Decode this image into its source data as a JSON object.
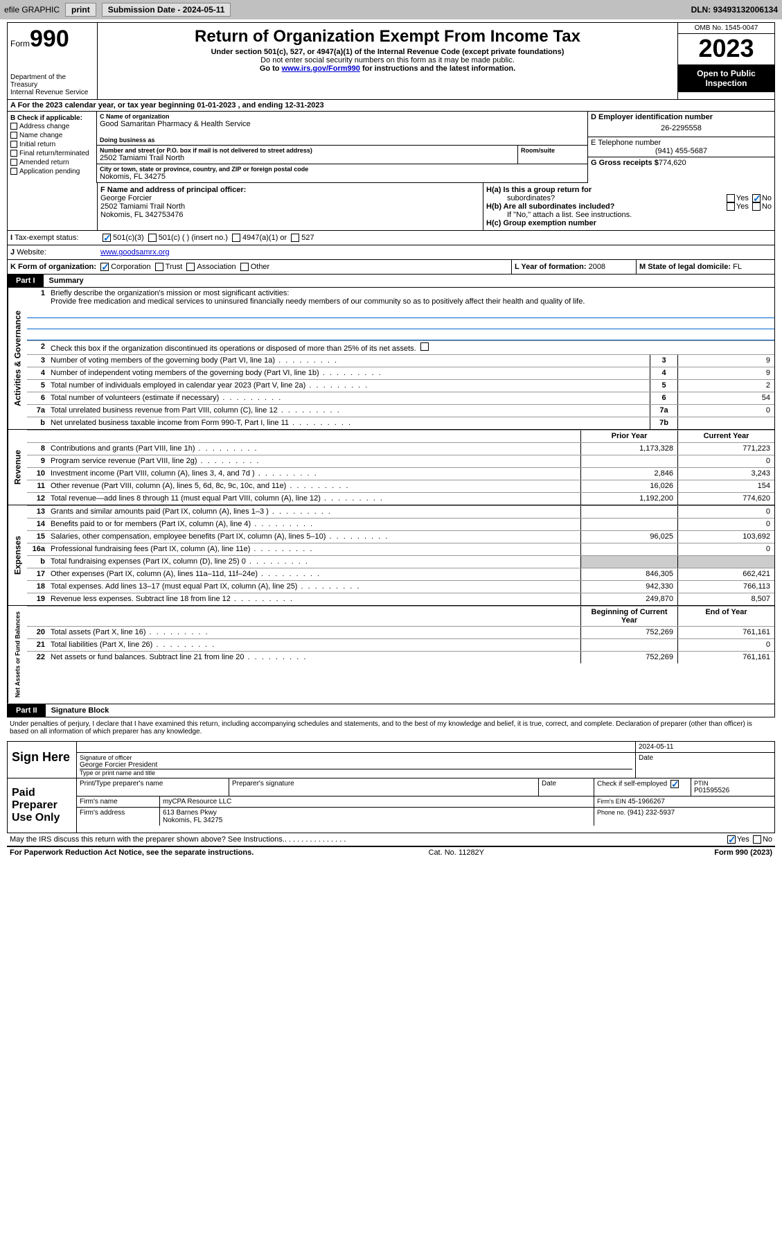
{
  "topbar": {
    "efile": "efile GRAPHIC",
    "print": "print",
    "submission": "Submission Date - 2024-05-11",
    "dln": "DLN: 93493132006134"
  },
  "header": {
    "form_label": "Form",
    "form_num": "990",
    "dept": "Department of the Treasury\nInternal Revenue Service",
    "title": "Return of Organization Exempt From Income Tax",
    "sub1": "Under section 501(c), 527, or 4947(a)(1) of the Internal Revenue Code (except private foundations)",
    "sub2": "Do not enter social security numbers on this form as it may be made public.",
    "sub3_pre": "Go to ",
    "sub3_link": "www.irs.gov/Form990",
    "sub3_post": " for instructions and the latest information.",
    "omb": "OMB No. 1545-0047",
    "year": "2023",
    "inspect": "Open to Public\nInspection"
  },
  "line_a": "A For the 2023 calendar year, or tax year beginning 01-01-2023   , and ending 12-31-2023",
  "section_b": {
    "label": "B Check if applicable:",
    "items": [
      "Address change",
      "Name change",
      "Initial return",
      "Final return/terminated",
      "Amended return",
      "Application pending"
    ]
  },
  "section_c": {
    "c_label": "C Name of organization",
    "org": "Good Samaritan Pharmacy & Health Service",
    "dba_label": "Doing business as",
    "dba": "",
    "addr_label": "Number and street (or P.O. box if mail is not delivered to street address)",
    "room_label": "Room/suite",
    "addr": "2502 Tamiami Trail North",
    "city_label": "City or town, state or province, country, and ZIP or foreign postal code",
    "city": "Nokomis, FL  34275"
  },
  "section_d": {
    "label": "D Employer identification number",
    "ein": "26-2295558"
  },
  "section_e": {
    "label": "E Telephone number",
    "phone": "(941) 455-5687"
  },
  "section_g": {
    "label": "G Gross receipts $",
    "amount": "774,620"
  },
  "section_f": {
    "label": "F  Name and address of principal officer:",
    "name": "George Forcier",
    "addr1": "2502 Tamiami Trail North",
    "addr2": "Nokomis, FL  342753476"
  },
  "section_h": {
    "a": "H(a)  Is this a group return for",
    "a2": "subordinates?",
    "b": "H(b)  Are all subordinates included?",
    "bnote": "If \"No,\" attach a list. See instructions.",
    "c": "H(c)  Group exemption number"
  },
  "section_i": {
    "label": "Tax-exempt status:",
    "c3": "501(c)(3)",
    "c": "501(c) (  ) (insert no.)",
    "a1": "4947(a)(1) or",
    "s527": "527"
  },
  "section_j": {
    "label": "Website:",
    "url": "www.goodsamrx.org"
  },
  "section_k": {
    "label": "K Form of organization:",
    "corp": "Corporation",
    "trust": "Trust",
    "assoc": "Association",
    "other": "Other"
  },
  "section_l": {
    "label": "L Year of formation:",
    "val": "2008"
  },
  "section_m": {
    "label": "M State of legal domicile:",
    "val": "FL"
  },
  "part1": {
    "header": "Part I",
    "title": "Summary"
  },
  "line1": {
    "num": "1",
    "label": "Briefly describe the organization's mission or most significant activities:",
    "mission": "Provide free medication and medical services to uninsured financially needy members of our community so as to positively affect their health and quality of life."
  },
  "line2": {
    "num": "2",
    "desc": "Check this box      if the organization discontinued its operations or disposed of more than 25% of its net assets."
  },
  "governance": {
    "vert": "Activities & Governance",
    "rows": [
      {
        "num": "3",
        "desc": "Number of voting members of the governing body (Part VI, line 1a)",
        "box": "3",
        "val": "9"
      },
      {
        "num": "4",
        "desc": "Number of independent voting members of the governing body (Part VI, line 1b)",
        "box": "4",
        "val": "9"
      },
      {
        "num": "5",
        "desc": "Total number of individuals employed in calendar year 2023 (Part V, line 2a)",
        "box": "5",
        "val": "2"
      },
      {
        "num": "6",
        "desc": "Total number of volunteers (estimate if necessary)",
        "box": "6",
        "val": "54"
      },
      {
        "num": "7a",
        "desc": "Total unrelated business revenue from Part VIII, column (C), line 12",
        "box": "7a",
        "val": "0"
      },
      {
        "num": "b",
        "desc": "Net unrelated business taxable income from Form 990-T, Part I, line 11",
        "box": "7b",
        "val": ""
      }
    ],
    "headers": {
      "prior": "Prior Year",
      "current": "Current Year"
    }
  },
  "revenue": {
    "vert": "Revenue",
    "rows": [
      {
        "num": "8",
        "desc": "Contributions and grants (Part VIII, line 1h)",
        "prior": "1,173,328",
        "curr": "771,223"
      },
      {
        "num": "9",
        "desc": "Program service revenue (Part VIII, line 2g)",
        "prior": "",
        "curr": "0"
      },
      {
        "num": "10",
        "desc": "Investment income (Part VIII, column (A), lines 3, 4, and 7d )",
        "prior": "2,846",
        "curr": "3,243"
      },
      {
        "num": "11",
        "desc": "Other revenue (Part VIII, column (A), lines 5, 6d, 8c, 9c, 10c, and 11e)",
        "prior": "16,026",
        "curr": "154"
      },
      {
        "num": "12",
        "desc": "Total revenue—add lines 8 through 11 (must equal Part VIII, column (A), line 12)",
        "prior": "1,192,200",
        "curr": "774,620"
      }
    ]
  },
  "expenses": {
    "vert": "Expenses",
    "rows": [
      {
        "num": "13",
        "desc": "Grants and similar amounts paid (Part IX, column (A), lines 1–3 )",
        "prior": "",
        "curr": "0"
      },
      {
        "num": "14",
        "desc": "Benefits paid to or for members (Part IX, column (A), line 4)",
        "prior": "",
        "curr": "0"
      },
      {
        "num": "15",
        "desc": "Salaries, other compensation, employee benefits (Part IX, column (A), lines 5–10)",
        "prior": "96,025",
        "curr": "103,692"
      },
      {
        "num": "16a",
        "desc": "Professional fundraising fees (Part IX, column (A), line 11e)",
        "prior": "",
        "curr": "0"
      },
      {
        "num": "b",
        "desc": "Total fundraising expenses (Part IX, column (D), line 25) 0",
        "prior": "gray",
        "curr": "gray"
      },
      {
        "num": "17",
        "desc": "Other expenses (Part IX, column (A), lines 11a–11d, 11f–24e)",
        "prior": "846,305",
        "curr": "662,421"
      },
      {
        "num": "18",
        "desc": "Total expenses. Add lines 13–17 (must equal Part IX, column (A), line 25)",
        "prior": "942,330",
        "curr": "766,113"
      },
      {
        "num": "19",
        "desc": "Revenue less expenses. Subtract line 18 from line 12",
        "prior": "249,870",
        "curr": "8,507"
      }
    ]
  },
  "netassets": {
    "vert": "Net Assets or Fund Balances",
    "headers": {
      "begin": "Beginning of Current Year",
      "end": "End of Year"
    },
    "rows": [
      {
        "num": "20",
        "desc": "Total assets (Part X, line 16)",
        "prior": "752,269",
        "curr": "761,161"
      },
      {
        "num": "21",
        "desc": "Total liabilities (Part X, line 26)",
        "prior": "",
        "curr": "0"
      },
      {
        "num": "22",
        "desc": "Net assets or fund balances. Subtract line 21 from line 20",
        "prior": "752,269",
        "curr": "761,161"
      }
    ]
  },
  "part2": {
    "header": "Part II",
    "title": "Signature Block"
  },
  "declaration": "Under penalties of perjury, I declare that I have examined this return, including accompanying schedules and statements, and to the best of my knowledge and belief, it is true, correct, and complete. Declaration of preparer (other than officer) is based on all information of which preparer has any knowledge.",
  "sign": {
    "label": "Sign Here",
    "date": "2024-05-11",
    "sig_label": "Signature of officer",
    "name": "George Forcier President",
    "name_label": "Type or print name and title",
    "date_label": "Date"
  },
  "preparer": {
    "label": "Paid Preparer Use Only",
    "name_label": "Print/Type preparer's name",
    "sig_label": "Preparer's signature",
    "date_label": "Date",
    "check_label": "Check        if self-employed",
    "ptin_label": "PTIN",
    "ptin": "P01595526",
    "firm_name_label": "Firm's name",
    "firm_name": "myCPA Resource LLC",
    "firm_ein_label": "Firm's EIN",
    "firm_ein": "45-1966267",
    "firm_addr_label": "Firm's address",
    "firm_addr": "613 Barnes Pkwy",
    "firm_city": "Nokomis, FL  34275",
    "phone_label": "Phone no.",
    "phone": "(941) 232-5937"
  },
  "discuss": "May the IRS discuss this return with the preparer shown above? See Instructions.",
  "footer": {
    "left": "For Paperwork Reduction Act Notice, see the separate instructions.",
    "mid": "Cat. No. 11282Y",
    "right": "Form 990 (2023)"
  },
  "yes": "Yes",
  "no": "No"
}
